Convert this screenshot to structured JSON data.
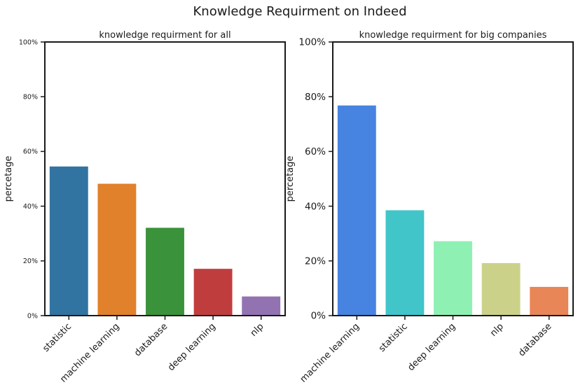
{
  "figure": {
    "title": "Knowledge Requirment on Indeed"
  },
  "chart_data": [
    {
      "type": "bar",
      "title": "knowledge requirment for all",
      "xlabel": "",
      "ylabel": "percetage",
      "ylim": [
        0,
        100
      ],
      "yticks": [
        "0%",
        "20%",
        "40%",
        "60%",
        "80%",
        "100%"
      ],
      "categories": [
        "statistic",
        "machine learning",
        "database",
        "deep learning",
        "nlp"
      ],
      "values": [
        54.5,
        48.2,
        32.1,
        17.1,
        7.0
      ],
      "colors": [
        "#3274a1",
        "#e1812c",
        "#3a923a",
        "#c03d3e",
        "#9372b2"
      ],
      "grid": false
    },
    {
      "type": "bar",
      "title": "knowledge requirment for big companies",
      "xlabel": "",
      "ylabel": "percetage",
      "ylim": [
        0,
        100
      ],
      "yticks": [
        "0%",
        "20%",
        "40%",
        "60%",
        "80%",
        "100%"
      ],
      "categories": [
        "machine learning",
        "statistic",
        "deep learning",
        "nlp",
        "database"
      ],
      "values": [
        76.8,
        38.5,
        27.2,
        19.2,
        10.5
      ],
      "colors": [
        "#4783e0",
        "#41c5c9",
        "#8ff0b4",
        "#ccd189",
        "#e88657"
      ],
      "grid": false
    }
  ]
}
